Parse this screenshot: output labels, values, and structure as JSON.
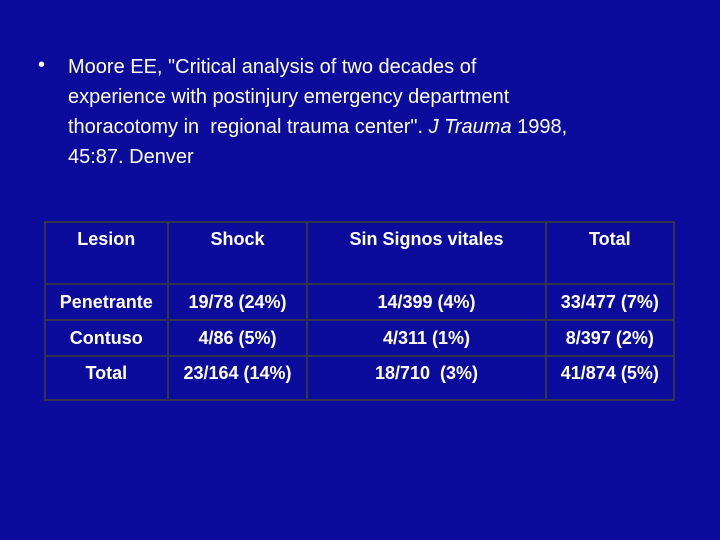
{
  "bullet": {
    "lines": [
      "Moore EE, \"Critical analysis of two decades of",
      "experience with postinjury emergency department",
      {
        "before": "thoracotomy in  regional trauma center\". ",
        "journal": "J Trauma",
        "after": " 1998,"
      },
      "45:87. Denver"
    ]
  },
  "table": {
    "header": [
      "Lesion",
      "Shock",
      "Sin Signos vitales",
      "Total"
    ],
    "rows": [
      [
        "Penetrante",
        "19/78 (24%)",
        "14/399 (4%)",
        "33/477 (7%)"
      ],
      [
        "Contuso",
        "4/86 (5%)",
        "4/311 (1%)",
        "8/397 (2%)"
      ],
      [
        "Total",
        "23/164 (14%)",
        "18/710  (3%)",
        "41/874 (5%)"
      ]
    ]
  }
}
